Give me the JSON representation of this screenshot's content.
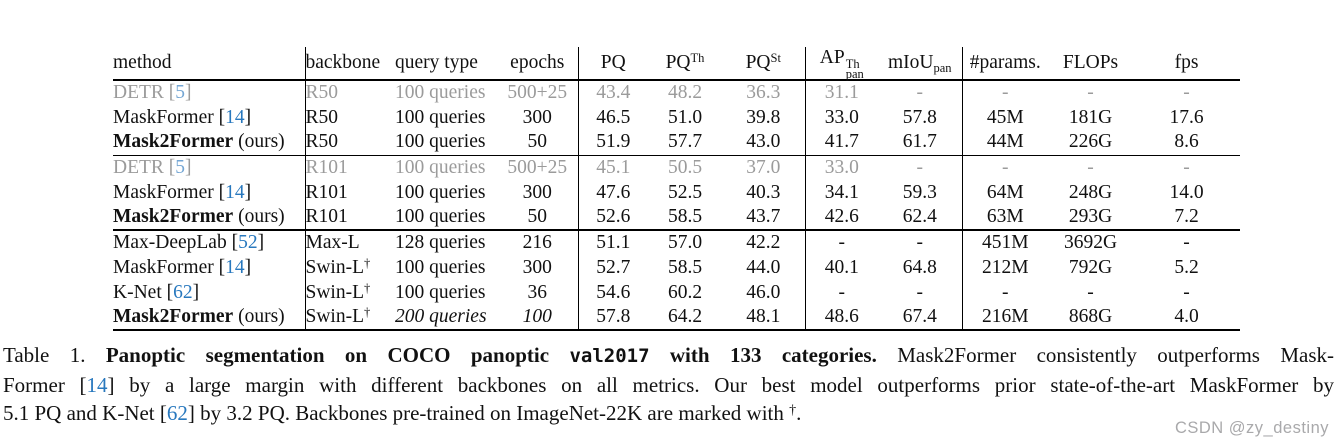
{
  "table": {
    "headers": [
      {
        "key": "method",
        "base": "method"
      },
      {
        "key": "backbone",
        "base": "backbone"
      },
      {
        "key": "query-type",
        "base": "query type"
      },
      {
        "key": "epochs",
        "base": "epochs"
      },
      {
        "key": "pq",
        "base": "PQ"
      },
      {
        "key": "pq-th",
        "base": "PQ",
        "sup": "Th"
      },
      {
        "key": "pq-st",
        "base": "PQ",
        "sup": "St"
      },
      {
        "key": "ap-pan",
        "base": "AP",
        "sup": "Th",
        "sub": "pan"
      },
      {
        "key": "miou-pan",
        "base": "mIoU",
        "sub": "pan"
      },
      {
        "key": "params",
        "base": "#params."
      },
      {
        "key": "flops",
        "base": "FLOPs"
      },
      {
        "key": "fps",
        "base": "fps"
      }
    ],
    "groups": [
      {
        "rows": [
          {
            "muted": true,
            "method": {
              "name": "DETR",
              "bold": false,
              "ref": "5",
              "suffix": ""
            },
            "backbone": {
              "text": "R50",
              "dagger": false
            },
            "query_type": {
              "text": "100 queries",
              "italic": false
            },
            "epochs": {
              "text": "500+25",
              "italic": false
            },
            "bold_metrics": false,
            "values": [
              "43.4",
              "48.2",
              "36.3",
              "31.1",
              "-",
              "-",
              "-",
              "-"
            ]
          },
          {
            "muted": false,
            "method": {
              "name": "MaskFormer",
              "bold": false,
              "ref": "14",
              "suffix": ""
            },
            "backbone": {
              "text": "R50",
              "dagger": false
            },
            "query_type": {
              "text": "100 queries",
              "italic": false
            },
            "epochs": {
              "text": "300",
              "italic": false
            },
            "bold_metrics": false,
            "values": [
              "46.5",
              "51.0",
              "39.8",
              "33.0",
              "57.8",
              "45M",
              "181G",
              "17.6"
            ]
          },
          {
            "muted": false,
            "method": {
              "name": "Mask2Former",
              "bold": true,
              "ref": "",
              "suffix": "(ours)"
            },
            "backbone": {
              "text": "R50",
              "dagger": false
            },
            "query_type": {
              "text": "100 queries",
              "italic": false
            },
            "epochs": {
              "text": "50",
              "italic": false
            },
            "bold_metrics": true,
            "values": [
              "51.9",
              "57.7",
              "43.0",
              "41.7",
              "61.7",
              "44M",
              "226G",
              "8.6"
            ]
          }
        ]
      },
      {
        "rows": [
          {
            "muted": true,
            "method": {
              "name": "DETR",
              "bold": false,
              "ref": "5",
              "suffix": ""
            },
            "backbone": {
              "text": "R101",
              "dagger": false
            },
            "query_type": {
              "text": "100 queries",
              "italic": false
            },
            "epochs": {
              "text": "500+25",
              "italic": false
            },
            "bold_metrics": false,
            "values": [
              "45.1",
              "50.5",
              "37.0",
              "33.0",
              "-",
              "-",
              "-",
              "-"
            ]
          },
          {
            "muted": false,
            "method": {
              "name": "MaskFormer",
              "bold": false,
              "ref": "14",
              "suffix": ""
            },
            "backbone": {
              "text": "R101",
              "dagger": false
            },
            "query_type": {
              "text": "100 queries",
              "italic": false
            },
            "epochs": {
              "text": "300",
              "italic": false
            },
            "bold_metrics": false,
            "values": [
              "47.6",
              "52.5",
              "40.3",
              "34.1",
              "59.3",
              "64M",
              "248G",
              "14.0"
            ]
          },
          {
            "muted": false,
            "method": {
              "name": "Mask2Former",
              "bold": true,
              "ref": "",
              "suffix": "(ours)"
            },
            "backbone": {
              "text": "R101",
              "dagger": false
            },
            "query_type": {
              "text": "100 queries",
              "italic": false
            },
            "epochs": {
              "text": "50",
              "italic": false
            },
            "bold_metrics": true,
            "values": [
              "52.6",
              "58.5",
              "43.7",
              "42.6",
              "62.4",
              "63M",
              "293G",
              "7.2"
            ]
          }
        ]
      },
      {
        "rows": [
          {
            "muted": false,
            "method": {
              "name": "Max-DeepLab",
              "bold": false,
              "ref": "52",
              "suffix": ""
            },
            "backbone": {
              "text": "Max-L",
              "dagger": false
            },
            "query_type": {
              "text": "128 queries",
              "italic": false
            },
            "epochs": {
              "text": "216",
              "italic": false
            },
            "bold_metrics": false,
            "values": [
              "51.1",
              "57.0",
              "42.2",
              "-",
              "-",
              "451M",
              "3692G",
              "-"
            ]
          },
          {
            "muted": false,
            "method": {
              "name": "MaskFormer",
              "bold": false,
              "ref": "14",
              "suffix": ""
            },
            "backbone": {
              "text": "Swin-L",
              "dagger": true
            },
            "query_type": {
              "text": "100 queries",
              "italic": false
            },
            "epochs": {
              "text": "300",
              "italic": false
            },
            "bold_metrics": false,
            "values": [
              "52.7",
              "58.5",
              "44.0",
              "40.1",
              "64.8",
              "212M",
              "792G",
              "5.2"
            ]
          },
          {
            "muted": false,
            "method": {
              "name": "K-Net",
              "bold": false,
              "ref": "62",
              "suffix": ""
            },
            "backbone": {
              "text": "Swin-L",
              "dagger": true
            },
            "query_type": {
              "text": "100 queries",
              "italic": false
            },
            "epochs": {
              "text": "36",
              "italic": false
            },
            "bold_metrics": false,
            "values": [
              "54.6",
              "60.2",
              "46.0",
              "-",
              "-",
              "-",
              "-",
              "-"
            ]
          },
          {
            "muted": false,
            "method": {
              "name": "Mask2Former",
              "bold": true,
              "ref": "",
              "suffix": "(ours)"
            },
            "backbone": {
              "text": "Swin-L",
              "dagger": true
            },
            "query_type": {
              "text": "200 queries",
              "italic": true
            },
            "epochs": {
              "text": "100",
              "italic": true
            },
            "bold_metrics": true,
            "values": [
              "57.8",
              "64.2",
              "48.1",
              "48.6",
              "67.4",
              "216M",
              "868G",
              "4.0"
            ]
          }
        ]
      }
    ]
  },
  "caption": {
    "lines": [
      {
        "segments": [
          {
            "t": "Table 1.  ",
            "s": "n"
          },
          {
            "t": "Panoptic segmentation on COCO panoptic ",
            "s": "b"
          },
          {
            "t": "val2017",
            "s": "m"
          },
          {
            "t": " with 133 categories.",
            "s": "b"
          },
          {
            "t": "  Mask2Former consistently outperforms Mask-",
            "s": "n"
          }
        ]
      },
      {
        "segments": [
          {
            "t": "Former [",
            "s": "n"
          },
          {
            "t": "14",
            "s": "r"
          },
          {
            "t": "] by a large margin with different backbones on all metrics. Our best model outperforms prior state-of-the-art MaskFormer by",
            "s": "n"
          }
        ]
      },
      {
        "segments": [
          {
            "t": "5.1 PQ and K-Net [",
            "s": "n"
          },
          {
            "t": "62",
            "s": "r"
          },
          {
            "t": "] by 3.2 PQ. Backbones pre-trained on ImageNet-22K are marked with ",
            "s": "n"
          },
          {
            "t": "†",
            "s": "sup"
          },
          {
            "t": ".",
            "s": "n"
          }
        ]
      }
    ]
  },
  "watermark": {
    "text": "CSDN @zy_destiny"
  }
}
